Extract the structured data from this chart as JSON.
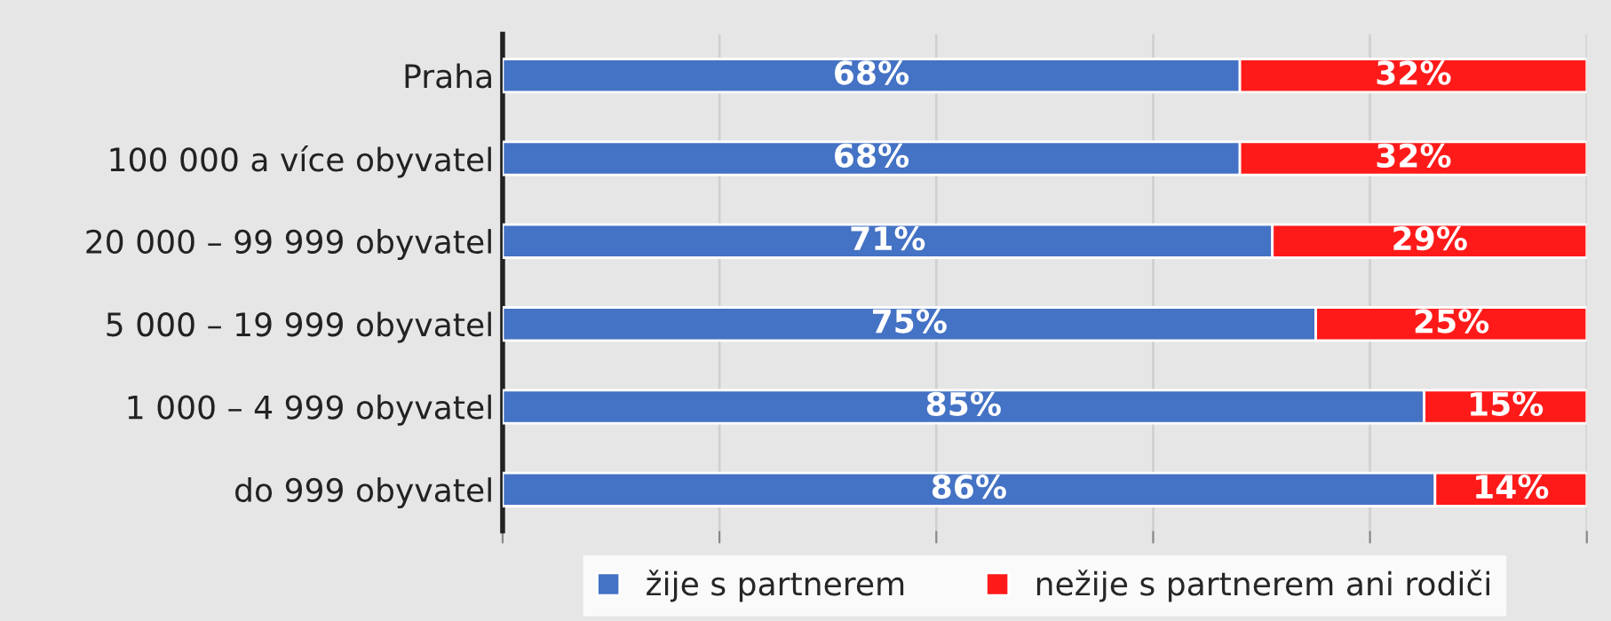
{
  "chart_data": {
    "type": "bar",
    "orientation": "horizontal",
    "stacked": true,
    "categories": [
      "Praha",
      "100 000 a více obyvatel",
      "20 000 – 99 999 obyvatel",
      "5 000 – 19 999 obyvatel",
      "1 000 – 4 999 obyvatel",
      "do 999 obyvatel"
    ],
    "series": [
      {
        "name": "žije s partnerem",
        "color": "#4472c4",
        "values": [
          68,
          68,
          71,
          75,
          85,
          86
        ],
        "value_labels": [
          "68%",
          "68%",
          "71%",
          "75%",
          "85%",
          "86%"
        ]
      },
      {
        "name": "nežije s partnerem ani rodiči",
        "color": "#ff1a1a",
        "values": [
          32,
          32,
          29,
          25,
          15,
          14
        ],
        "value_labels": [
          "32%",
          "32%",
          "29%",
          "25%",
          "15%",
          "14%"
        ]
      }
    ],
    "xlim": [
      0,
      100
    ],
    "xticks": [
      {
        "value": 0,
        "label": null
      },
      {
        "value": 20,
        "label": null
      },
      {
        "value": 40,
        "label": null
      },
      {
        "value": 60,
        "label": null
      },
      {
        "value": 80,
        "label": null
      },
      {
        "value": 100,
        "label": null
      }
    ],
    "tick_labels": "y",
    "grid": "x",
    "legend": "bottom"
  }
}
